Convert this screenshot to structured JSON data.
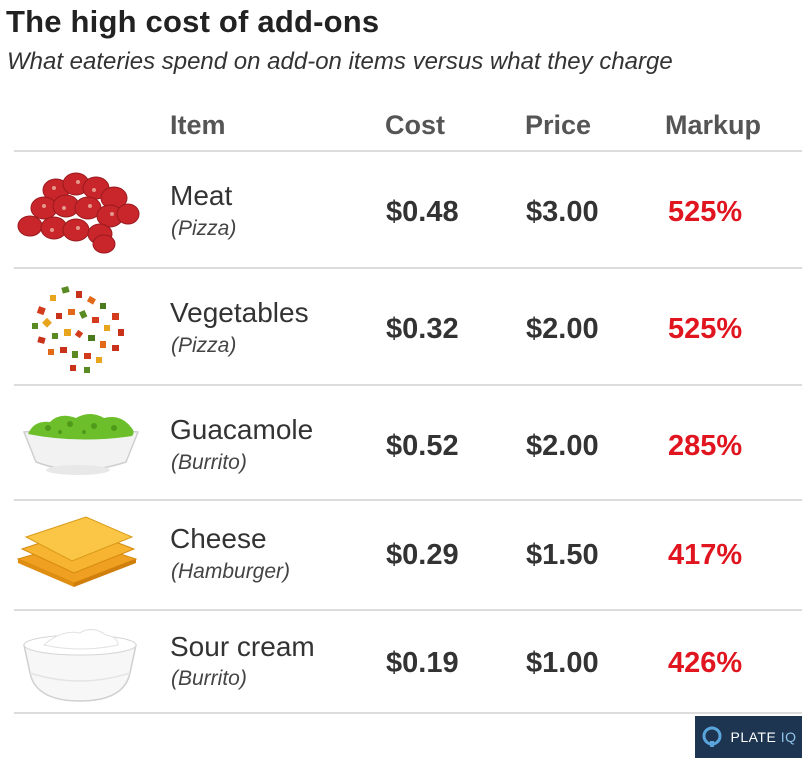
{
  "header": {
    "title": "The high cost of add-ons",
    "subtitle": "What eateries spend on add-on items versus what they charge"
  },
  "chart_data": {
    "type": "table",
    "title": "The high cost of add-ons",
    "subtitle": "What eateries spend on add-on items versus what they charge",
    "columns": [
      "Item",
      "Cost",
      "Price",
      "Markup"
    ],
    "rows": [
      {
        "item": "Meat",
        "context": "(Pizza)",
        "cost": "$0.48",
        "price": "$3.00",
        "markup": "525%",
        "icon": "pepperoni-icon"
      },
      {
        "item": "Vegetables",
        "context": "(Pizza)",
        "cost": "$0.32",
        "price": "$2.00",
        "markup": "525%",
        "icon": "vegetables-icon"
      },
      {
        "item": "Guacamole",
        "context": "(Burrito)",
        "cost": "$0.52",
        "price": "$2.00",
        "markup": "285%",
        "icon": "guacamole-icon"
      },
      {
        "item": "Cheese",
        "context": "(Hamburger)",
        "cost": "$0.29",
        "price": "$1.50",
        "markup": "417%",
        "icon": "cheese-icon"
      },
      {
        "item": "Sour cream",
        "context": "(Burrito)",
        "cost": "$0.19",
        "price": "$1.00",
        "markup": "426%",
        "icon": "sour-cream-icon"
      }
    ]
  },
  "colors": {
    "markup": "#e0151f",
    "header_text": "#555555",
    "logo_bg": "#1d3550"
  },
  "logo": {
    "text_main": "PLATE",
    "text_accent": "IQ"
  }
}
